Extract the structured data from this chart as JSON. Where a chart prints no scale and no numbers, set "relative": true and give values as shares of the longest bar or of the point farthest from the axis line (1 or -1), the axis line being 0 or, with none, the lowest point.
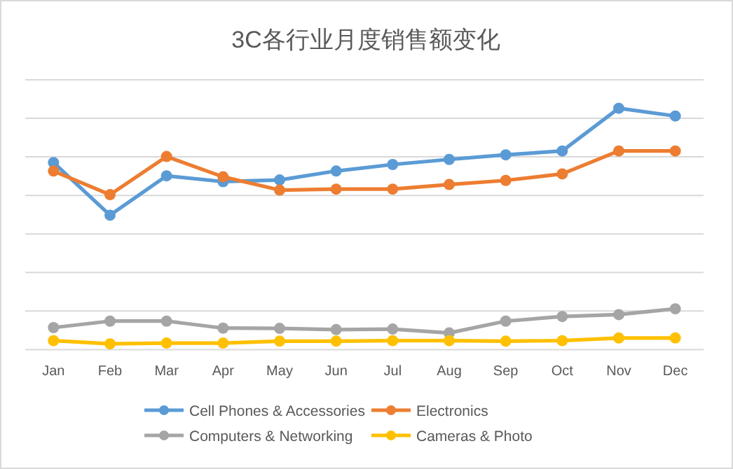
{
  "chart_data": {
    "type": "line",
    "title": "3C各行业月度销售额变化",
    "relative": true,
    "grid": "y",
    "legend": "bottom",
    "marker": "circle",
    "line_style": "solid",
    "categories": [
      "Jan",
      "Feb",
      "Mar",
      "Apr",
      "May",
      "Jun",
      "Jul",
      "Aug",
      "Sep",
      "Oct",
      "Nov",
      "Dec"
    ],
    "series": [
      {
        "name": "Cell Phones & Accessories",
        "color": "#5b9bd5",
        "values": [
          0.775,
          0.557,
          0.72,
          0.696,
          0.703,
          0.74,
          0.767,
          0.788,
          0.807,
          0.823,
          1,
          0.968
        ]
      },
      {
        "name": "Electronics",
        "color": "#ed7d31",
        "values": [
          0.74,
          0.642,
          0.8,
          0.716,
          0.661,
          0.665,
          0.665,
          0.684,
          0.701,
          0.728,
          0.823,
          0.823
        ]
      },
      {
        "name": "Computers & Networking",
        "color": "#a5a5a5",
        "values": [
          0.091,
          0.118,
          0.118,
          0.089,
          0.088,
          0.083,
          0.085,
          0.069,
          0.118,
          0.137,
          0.145,
          0.169
        ]
      },
      {
        "name": "Cameras & Photo",
        "color": "#ffc000",
        "values": [
          0.037,
          0.024,
          0.027,
          0.027,
          0.035,
          0.035,
          0.037,
          0.037,
          0.035,
          0.037,
          0.048,
          0.048
        ]
      }
    ]
  }
}
